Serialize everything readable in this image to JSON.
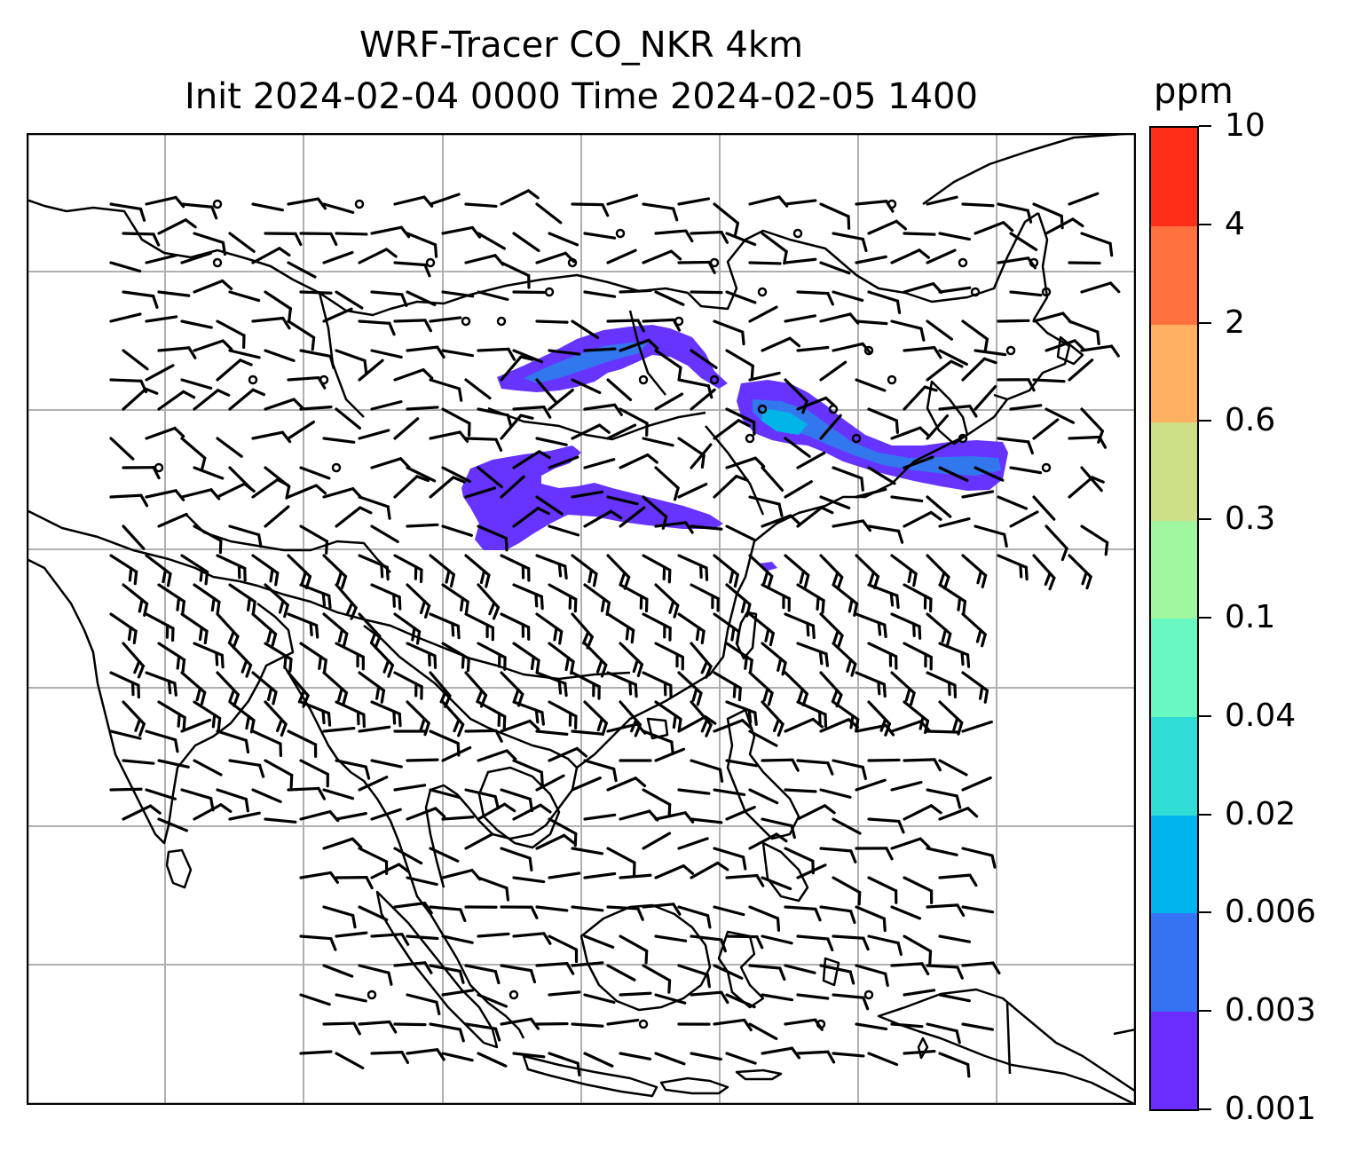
{
  "title": {
    "line1": "WRF-Tracer CO_NKR 4km",
    "line2": "Init 2024-02-04 0000 Time 2024-02-05 1400"
  },
  "map": {
    "region": "South and Southeast Asia",
    "overlays": [
      "coastlines",
      "country borders",
      "lat-lon gridlines",
      "wind barbs",
      "tracer concentration shading"
    ],
    "gridlines": true,
    "plume_color": "#6633ff",
    "plume_core_color": "#3377ee",
    "plume_peak_color": "#00b4e8"
  },
  "colorbar": {
    "unit": "ppm",
    "levels": [
      "0.001",
      "0.003",
      "0.006",
      "0.02",
      "0.04",
      "0.1",
      "0.3",
      "0.6",
      "2",
      "4",
      "10"
    ],
    "colors": [
      "#6a2cff",
      "#3573f2",
      "#02b4ee",
      "#2fddd6",
      "#69f8c1",
      "#a0f79f",
      "#cde087",
      "#ffb060",
      "#ff7240",
      "#ff2e18"
    ]
  }
}
